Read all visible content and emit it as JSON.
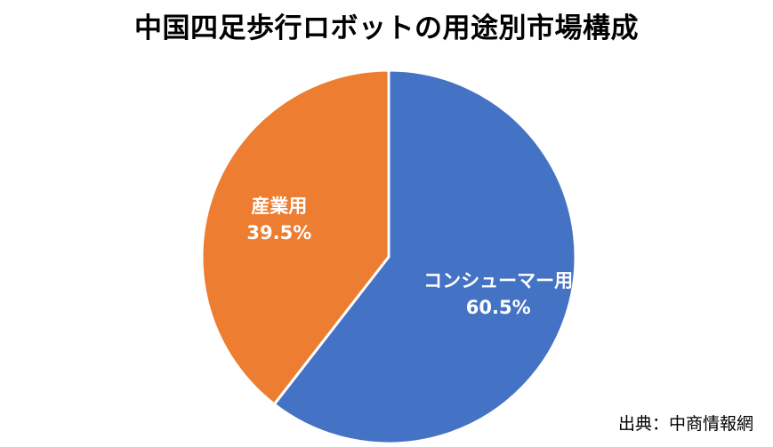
{
  "chart_data": {
    "type": "pie",
    "title": "中国四足歩行ロボットの用途別市場構成",
    "slices": [
      {
        "label": "コンシューマー用",
        "value": 60.5,
        "value_label": "60.5%",
        "color": "#4472C4"
      },
      {
        "label": "産業用",
        "value": 39.5,
        "value_label": "39.5%",
        "color": "#ED7D31"
      }
    ],
    "start_angle_deg": 0,
    "direction": "clockwise",
    "legend": "none"
  },
  "source_note": "出典：中商情報網"
}
